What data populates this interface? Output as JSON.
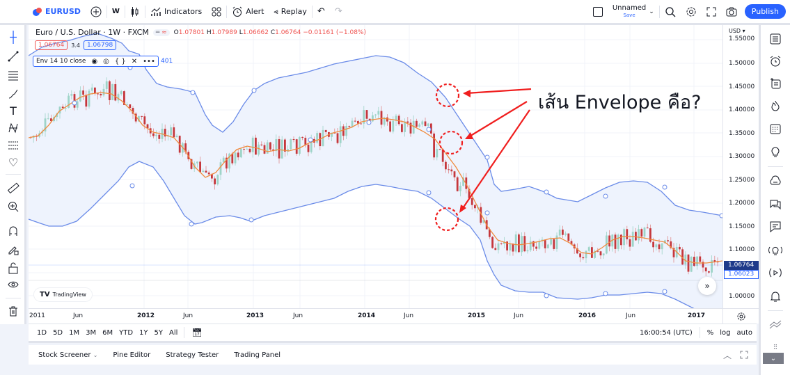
{
  "toolbar": {
    "symbol": "EURUSD",
    "interval": "W",
    "indicators_label": "Indicators",
    "alert_label": "Alert",
    "replay_label": "Replay",
    "layout_name": "Unnamed",
    "layout_save": "Save",
    "publish_label": "Publish"
  },
  "legend": {
    "title": "Euro / U.S. Dollar · 1W · FXCM",
    "open_label": "O",
    "open": "1.07801",
    "high_label": "H",
    "high": "1.07989",
    "low_label": "L",
    "low": "1.06662",
    "close_label": "C",
    "close": "1.06764",
    "change": "−0.01161 (−1.08%)",
    "bid": "1.06764",
    "spread": "3.4",
    "ask": "1.06798",
    "indicator": "Env 14 10 close",
    "indicator_value_fragment": "401"
  },
  "price_axis": {
    "currency": "USD",
    "labels": [
      "1.55000",
      "1.50000",
      "1.45000",
      "1.40000",
      "1.35000",
      "1.30000",
      "1.25000",
      "1.20000",
      "1.15000",
      "1.10000",
      "1.00000"
    ],
    "last_price": "1.06764",
    "secondary_price": "1.06023"
  },
  "time_axis": {
    "labels": [
      {
        "text": "2011",
        "bold": true
      },
      {
        "text": "Jun",
        "bold": false
      },
      {
        "text": "2012",
        "bold": true
      },
      {
        "text": "Jun",
        "bold": false
      },
      {
        "text": "2013",
        "bold": true
      },
      {
        "text": "Jun",
        "bold": false
      },
      {
        "text": "2014",
        "bold": true
      },
      {
        "text": "Jun",
        "bold": false
      },
      {
        "text": "2015",
        "bold": true
      },
      {
        "text": "Jun",
        "bold": false
      },
      {
        "text": "2016",
        "bold": true
      },
      {
        "text": "Jun",
        "bold": false
      },
      {
        "text": "2017",
        "bold": true
      }
    ]
  },
  "range_bar": {
    "ranges": [
      "1D",
      "5D",
      "1M",
      "3M",
      "6M",
      "YTD",
      "1Y",
      "5Y",
      "All"
    ],
    "clock": "16:00:54 (UTC)",
    "percent": "%",
    "log": "log",
    "auto": "auto"
  },
  "bottom_panel": {
    "tabs": [
      "Stock Screener",
      "Pine Editor",
      "Strategy Tester",
      "Trading Panel"
    ]
  },
  "branding": {
    "watermark": "TradingView"
  },
  "annotation": {
    "text": "เส้น Envelope คือ?"
  },
  "colors": {
    "accent": "#2962ff",
    "envelope_band": "#5b7fe8",
    "envelope_fill": "#eef3fd",
    "basis": "#f08a3c",
    "up_candle": "#9ed4c8",
    "down_candle": "#c5373c",
    "annotation": "#f01e1e"
  }
}
